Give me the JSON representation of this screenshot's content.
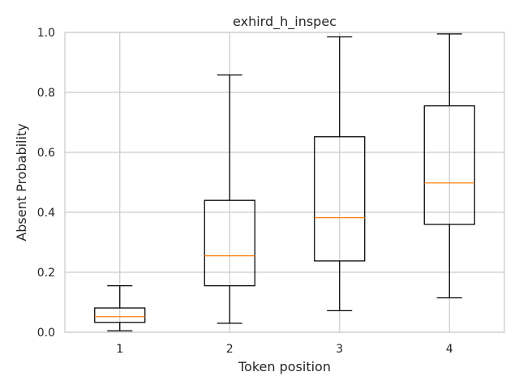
{
  "chart_data": {
    "type": "box",
    "title": "exhird_h_inspec",
    "xlabel": "Token position",
    "ylabel": "Absent Probability",
    "categories": [
      "1",
      "2",
      "3",
      "4"
    ],
    "ylim": [
      0.0,
      1.0
    ],
    "yticks": [
      "0.0",
      "0.2",
      "0.4",
      "0.6",
      "0.8",
      "1.0"
    ],
    "boxes": [
      {
        "whisker_low": 0.005,
        "q1": 0.033,
        "median": 0.052,
        "q3": 0.081,
        "whisker_high": 0.155
      },
      {
        "whisker_low": 0.03,
        "q1": 0.155,
        "median": 0.255,
        "q3": 0.44,
        "whisker_high": 0.858
      },
      {
        "whisker_low": 0.072,
        "q1": 0.238,
        "median": 0.382,
        "q3": 0.652,
        "whisker_high": 0.985
      },
      {
        "whisker_low": 0.115,
        "q1": 0.36,
        "median": 0.498,
        "q3": 0.755,
        "whisker_high": 0.995
      }
    ],
    "grid": true,
    "colors": {
      "box": "#000000",
      "median": "#ff7f0e",
      "grid": "#cccccc",
      "spine": "#cccccc"
    }
  }
}
